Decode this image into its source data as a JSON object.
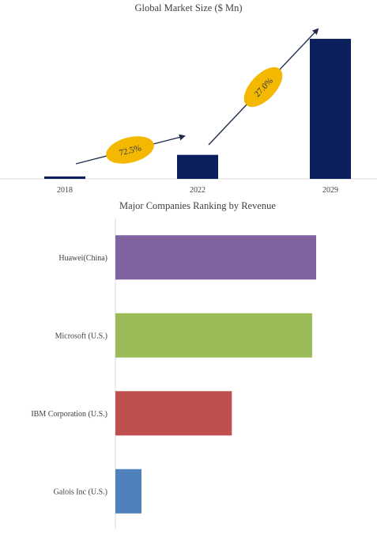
{
  "chart_data": [
    {
      "type": "bar",
      "title": "Global Market Size ($ Mn)",
      "categories": [
        "2018",
        "2022",
        "2029"
      ],
      "values": [
        3,
        30,
        175
      ],
      "ylim": [
        0,
        180
      ],
      "bar_color": "#0a1f5c",
      "grid": false,
      "annotations": [
        {
          "text": "72.5%",
          "from": "2018",
          "to": "2022"
        },
        {
          "text": "27.0%",
          "from": "2022",
          "to": "2029"
        }
      ],
      "annotation_color": "#f5b800"
    },
    {
      "type": "bar",
      "orientation": "horizontal",
      "title": "Major Companies Ranking by Revenue",
      "categories": [
        "Huawei(China)",
        "Microsoft (U.S.)",
        "IBM Corporation (U.S.)",
        "Galois Inc (U.S.)"
      ],
      "values": [
        100,
        98,
        58,
        13
      ],
      "xlim": [
        0,
        100
      ],
      "colors": [
        "#8064a2",
        "#9bbb59",
        "#c0504d",
        "#4f81bd"
      ],
      "grid": false
    }
  ]
}
